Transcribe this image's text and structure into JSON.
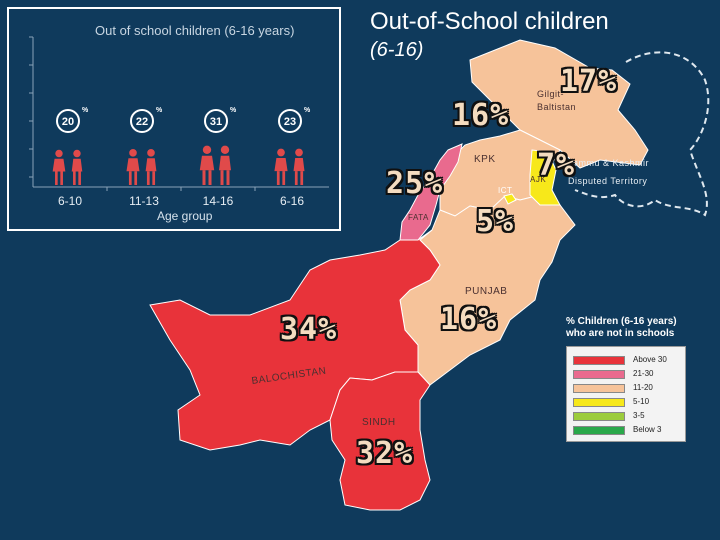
{
  "slide": {
    "title_line1": "Out-of-School children",
    "title_line2": "(6-16)"
  },
  "inset_chart": {
    "title": "Out of school children (6-16 years)",
    "xlabel": "Age group",
    "groups": [
      {
        "label": "6-10",
        "value": "20",
        "unit": "%"
      },
      {
        "label": "11-13",
        "value": "22",
        "unit": "%"
      },
      {
        "label": "14-16",
        "value": "31",
        "unit": "%"
      },
      {
        "label": "6-16",
        "value": "23",
        "unit": "%"
      }
    ]
  },
  "chart_data": {
    "type": "bar",
    "title": "Out of school children (6-16 years)",
    "xlabel": "Age group",
    "ylabel": "",
    "categories": [
      "6-10",
      "11-13",
      "14-16",
      "6-16"
    ],
    "values": [
      20,
      22,
      31,
      23
    ]
  },
  "map": {
    "regions": [
      {
        "id": "balochistan",
        "label": "BALOCHISTAN",
        "pct": "34%",
        "color": "#e8333a"
      },
      {
        "id": "sindh",
        "label": "SINDH",
        "pct": "32%",
        "color": "#e8333a"
      },
      {
        "id": "punjab",
        "label": "PUNJAB",
        "pct": "16%",
        "color": "#f6c39a"
      },
      {
        "id": "kpk",
        "label": "KPK",
        "pct": "16%",
        "color": "#f6c39a"
      },
      {
        "id": "fata",
        "label": "FATA",
        "pct": "25%",
        "color": "#e96a8e"
      },
      {
        "id": "gb",
        "label_line1": "Gilgit-",
        "label_line2": "Baltistan",
        "pct": "17%",
        "color": "#f6c39a"
      },
      {
        "id": "ajk",
        "label": "AJK",
        "pct": "7%",
        "color": "#f7e81a"
      },
      {
        "id": "ict",
        "label": "ICT",
        "pct": "5%",
        "color": "#f7e81a"
      }
    ],
    "disputed_label_line1": "Jammu & Kashmir",
    "disputed_label_line2": "Disputed Territory"
  },
  "legend": {
    "title": "% Children (6-16 years) who are not in schools",
    "items": [
      {
        "label": "Above 30",
        "color": "#e8333a"
      },
      {
        "label": "21-30",
        "color": "#e96a8e"
      },
      {
        "label": "11-20",
        "color": "#f6c39a"
      },
      {
        "label": "5-10",
        "color": "#f7e81a"
      },
      {
        "label": "3-5",
        "color": "#9ccc3c"
      },
      {
        "label": "Below 3",
        "color": "#2aa84a"
      }
    ]
  }
}
